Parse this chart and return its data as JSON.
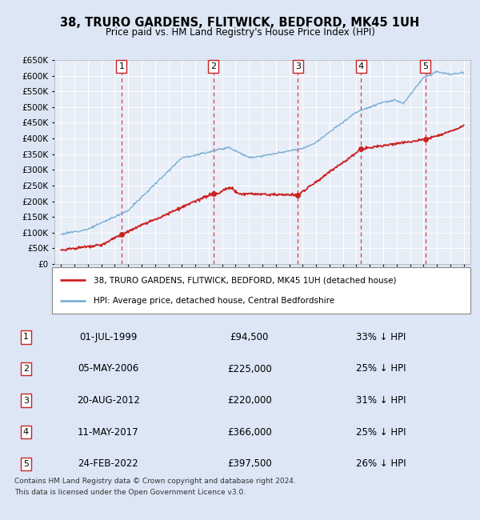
{
  "title1": "38, TRURO GARDENS, FLITWICK, BEDFORD, MK45 1UH",
  "title2": "Price paid vs. HM Land Registry's House Price Index (HPI)",
  "legend_line1": "38, TRURO GARDENS, FLITWICK, BEDFORD, MK45 1UH (detached house)",
  "legend_line2": "HPI: Average price, detached house, Central Bedfordshire",
  "footnote1": "Contains HM Land Registry data © Crown copyright and database right 2024.",
  "footnote2": "This data is licensed under the Open Government Licence v3.0.",
  "transactions": [
    {
      "num": 1,
      "date": "01-JUL-1999",
      "year": 1999.5,
      "price": 94500,
      "pct": "33%"
    },
    {
      "num": 2,
      "date": "05-MAY-2006",
      "year": 2006.35,
      "price": 225000,
      "pct": "25%"
    },
    {
      "num": 3,
      "date": "20-AUG-2012",
      "year": 2012.64,
      "price": 220000,
      "pct": "31%"
    },
    {
      "num": 4,
      "date": "11-MAY-2017",
      "year": 2017.36,
      "price": 366000,
      "pct": "25%"
    },
    {
      "num": 5,
      "date": "24-FEB-2022",
      "year": 2022.15,
      "price": 397500,
      "pct": "26%"
    }
  ],
  "hpi_color": "#7bafd4",
  "price_color": "#cc2222",
  "dashed_color": "#cc2222",
  "background_color": "#dce6f5",
  "plot_bg_color": "#e8eef8",
  "ylim": [
    0,
    650000
  ],
  "xlim_start": 1994.5,
  "xlim_end": 2025.5
}
